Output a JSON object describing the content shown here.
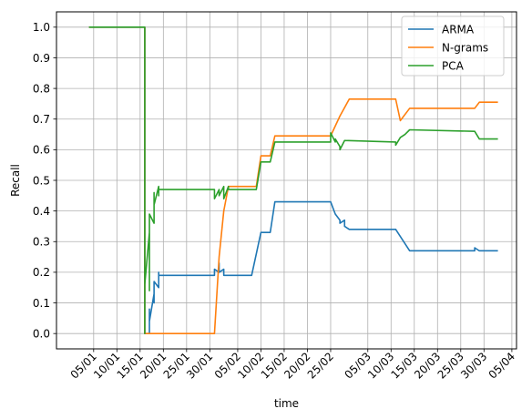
{
  "chart_data": {
    "type": "line",
    "xlabel": "time",
    "ylabel": "Recall",
    "x_axis_type": "date",
    "xlim": [
      "2021-12-28",
      "2022-04-06"
    ],
    "ylim": [
      -0.05,
      1.05
    ],
    "grid": true,
    "legend_position": "top-right",
    "x_ticks": [
      {
        "date": "2022-01-05",
        "label": "05/01"
      },
      {
        "date": "2022-01-10",
        "label": "10/01"
      },
      {
        "date": "2022-01-15",
        "label": "15/01"
      },
      {
        "date": "2022-01-20",
        "label": "20/01"
      },
      {
        "date": "2022-01-25",
        "label": "25/01"
      },
      {
        "date": "2022-01-30",
        "label": "30/01"
      },
      {
        "date": "2022-02-05",
        "label": "05/02"
      },
      {
        "date": "2022-02-10",
        "label": "10/02"
      },
      {
        "date": "2022-02-15",
        "label": "15/02"
      },
      {
        "date": "2022-02-20",
        "label": "20/02"
      },
      {
        "date": "2022-02-25",
        "label": "25/02"
      },
      {
        "date": "2022-03-05",
        "label": "05/03"
      },
      {
        "date": "2022-03-10",
        "label": "10/03"
      },
      {
        "date": "2022-03-15",
        "label": "15/03"
      },
      {
        "date": "2022-03-20",
        "label": "20/03"
      },
      {
        "date": "2022-03-25",
        "label": "25/03"
      },
      {
        "date": "2022-03-30",
        "label": "30/03"
      },
      {
        "date": "2022-04-05",
        "label": "05/04"
      }
    ],
    "y_ticks": [
      {
        "value": 0.0,
        "label": "0.0"
      },
      {
        "value": 0.1,
        "label": "0.1"
      },
      {
        "value": 0.2,
        "label": "0.2"
      },
      {
        "value": 0.3,
        "label": "0.3"
      },
      {
        "value": 0.4,
        "label": "0.4"
      },
      {
        "value": 0.5,
        "label": "0.5"
      },
      {
        "value": 0.6,
        "label": "0.6"
      },
      {
        "value": 0.7,
        "label": "0.7"
      },
      {
        "value": 0.8,
        "label": "0.8"
      },
      {
        "value": 0.9,
        "label": "0.9"
      },
      {
        "value": 1.0,
        "label": "1.0"
      }
    ],
    "series": [
      {
        "name": "ARMA",
        "color": "#1f77b4",
        "points": [
          [
            "2022-01-04",
            1.0
          ],
          [
            "2022-01-16",
            1.0
          ],
          [
            "2022-01-16",
            0.0
          ],
          [
            "2022-01-17",
            0.0
          ],
          [
            "2022-01-17",
            0.08
          ],
          [
            "2022-01-17",
            0.04
          ],
          [
            "2022-01-18",
            0.13
          ],
          [
            "2022-01-18",
            0.1
          ],
          [
            "2022-01-18",
            0.17
          ],
          [
            "2022-01-19",
            0.15
          ],
          [
            "2022-01-19",
            0.18
          ],
          [
            "2022-01-19",
            0.2
          ],
          [
            "2022-01-19",
            0.19
          ],
          [
            "2022-01-31",
            0.19
          ],
          [
            "2022-01-31",
            0.21
          ],
          [
            "2022-02-01",
            0.2
          ],
          [
            "2022-02-01",
            0.23
          ],
          [
            "2022-02-01",
            0.2
          ],
          [
            "2022-02-02",
            0.21
          ],
          [
            "2022-02-02",
            0.19
          ],
          [
            "2022-02-08",
            0.19
          ],
          [
            "2022-02-10",
            0.33
          ],
          [
            "2022-02-12",
            0.33
          ],
          [
            "2022-02-13",
            0.43
          ],
          [
            "2022-02-25",
            0.43
          ],
          [
            "2022-02-26",
            0.39
          ],
          [
            "2022-02-27",
            0.37
          ],
          [
            "2022-02-27",
            0.36
          ],
          [
            "2022-02-28",
            0.37
          ],
          [
            "2022-02-28",
            0.35
          ],
          [
            "2022-03-01",
            0.34
          ],
          [
            "2022-03-11",
            0.34
          ],
          [
            "2022-03-14",
            0.27
          ],
          [
            "2022-03-28",
            0.27
          ],
          [
            "2022-03-28",
            0.28
          ],
          [
            "2022-03-29",
            0.27
          ],
          [
            "2022-04-02",
            0.27
          ]
        ]
      },
      {
        "name": "N-grams",
        "color": "#ff7f0e",
        "points": [
          [
            "2022-01-04",
            1.0
          ],
          [
            "2022-01-16",
            1.0
          ],
          [
            "2022-01-16",
            0.0
          ],
          [
            "2022-01-31",
            0.0
          ],
          [
            "2022-02-01",
            0.25
          ],
          [
            "2022-02-02",
            0.4
          ],
          [
            "2022-02-03",
            0.48
          ],
          [
            "2022-02-09",
            0.48
          ],
          [
            "2022-02-10",
            0.58
          ],
          [
            "2022-02-12",
            0.58
          ],
          [
            "2022-02-13",
            0.645
          ],
          [
            "2022-02-25",
            0.645
          ],
          [
            "2022-02-27",
            0.71
          ],
          [
            "2022-03-01",
            0.765
          ],
          [
            "2022-03-11",
            0.765
          ],
          [
            "2022-03-12",
            0.695
          ],
          [
            "2022-03-14",
            0.735
          ],
          [
            "2022-03-28",
            0.735
          ],
          [
            "2022-03-29",
            0.755
          ],
          [
            "2022-04-02",
            0.755
          ]
        ]
      },
      {
        "name": "PCA",
        "color": "#2ca02c",
        "points": [
          [
            "2022-01-04",
            1.0
          ],
          [
            "2022-01-16",
            1.0
          ],
          [
            "2022-01-16",
            0.0
          ],
          [
            "2022-01-16",
            0.16
          ],
          [
            "2022-01-17",
            0.33
          ],
          [
            "2022-01-17",
            0.14
          ],
          [
            "2022-01-17",
            0.38
          ],
          [
            "2022-01-17",
            0.2
          ],
          [
            "2022-01-17",
            0.39
          ],
          [
            "2022-01-18",
            0.36
          ],
          [
            "2022-01-18",
            0.44
          ],
          [
            "2022-01-18",
            0.4
          ],
          [
            "2022-01-18",
            0.46
          ],
          [
            "2022-01-18",
            0.42
          ],
          [
            "2022-01-19",
            0.48
          ],
          [
            "2022-01-19",
            0.45
          ],
          [
            "2022-01-19",
            0.48
          ],
          [
            "2022-01-19",
            0.47
          ],
          [
            "2022-01-31",
            0.47
          ],
          [
            "2022-01-31",
            0.44
          ],
          [
            "2022-02-01",
            0.47
          ],
          [
            "2022-02-01",
            0.45
          ],
          [
            "2022-02-02",
            0.48
          ],
          [
            "2022-02-02",
            0.44
          ],
          [
            "2022-02-03",
            0.48
          ],
          [
            "2022-02-03",
            0.47
          ],
          [
            "2022-02-09",
            0.47
          ],
          [
            "2022-02-10",
            0.56
          ],
          [
            "2022-02-12",
            0.56
          ],
          [
            "2022-02-13",
            0.625
          ],
          [
            "2022-02-25",
            0.625
          ],
          [
            "2022-02-25",
            0.655
          ],
          [
            "2022-02-26",
            0.625
          ],
          [
            "2022-02-26",
            0.635
          ],
          [
            "2022-02-27",
            0.61
          ],
          [
            "2022-02-27",
            0.6
          ],
          [
            "2022-02-28",
            0.63
          ],
          [
            "2022-03-11",
            0.625
          ],
          [
            "2022-03-11",
            0.615
          ],
          [
            "2022-03-12",
            0.64
          ],
          [
            "2022-03-13",
            0.65
          ],
          [
            "2022-03-14",
            0.665
          ],
          [
            "2022-03-28",
            0.66
          ],
          [
            "2022-03-29",
            0.635
          ],
          [
            "2022-04-02",
            0.635
          ]
        ]
      }
    ]
  }
}
